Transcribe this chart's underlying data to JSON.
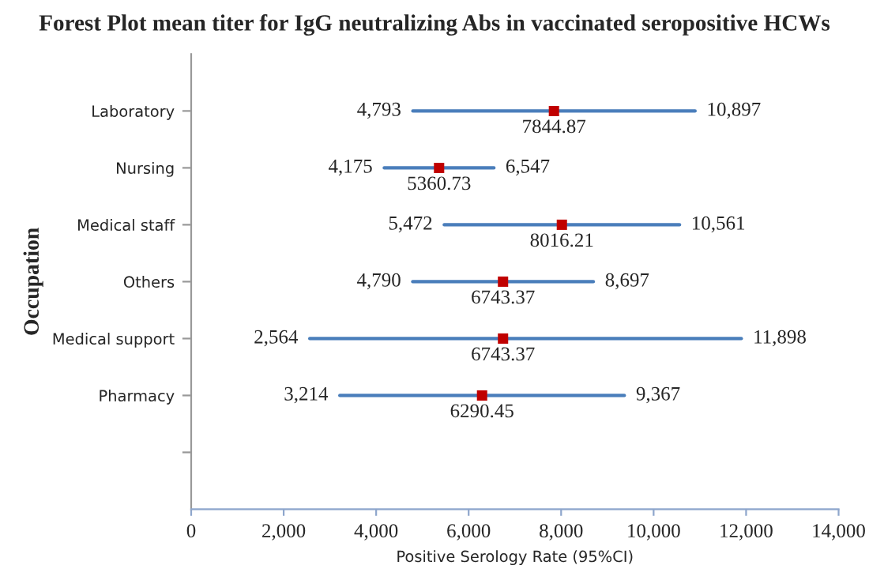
{
  "chart_data": {
    "type": "scatter",
    "orientation": "horizontal",
    "title": "Forest Plot mean titer for IgG neutralizing Abs in vaccinated seropositive HCWs",
    "xlabel": "Positive Serology Rate (95%CI)",
    "ylabel": "Occupation",
    "categories": [
      "Laboratory",
      "Nursing",
      "Medical staff",
      "Others",
      "Medical support",
      "Pharmacy",
      null
    ],
    "series": [
      {
        "color": "#c00000",
        "values": [
          7844.87,
          5360.73,
          8016.21,
          6743.37,
          6743.37,
          6290.45,
          null
        ],
        "errors": [
          [
            4793,
            10897
          ],
          [
            4175,
            6547
          ],
          [
            5472,
            10561
          ],
          [
            4790,
            8697
          ],
          [
            2564,
            11898
          ],
          [
            3214,
            9367
          ],
          null
        ],
        "value_labels": [
          "7844.87",
          "5360.73",
          "8016.21",
          "6743.37",
          "6743.37",
          "6290.45",
          null
        ]
      }
    ],
    "annotations": [
      "4,793",
      "10,897",
      "4,175",
      "6,547",
      "5,472",
      "10,561",
      "4,790",
      "8,697",
      "2,564",
      "11,898",
      "3,214",
      "9,367"
    ],
    "xlim": [
      0,
      14000
    ],
    "xticks": [
      {
        "value": 0,
        "label": "0"
      },
      {
        "value": 2000,
        "label": "2,000"
      },
      {
        "value": 4000,
        "label": "4,000"
      },
      {
        "value": 6000,
        "label": "6,000"
      },
      {
        "value": 8000,
        "label": "8,000"
      },
      {
        "value": 10000,
        "label": "10,000"
      },
      {
        "value": 12000,
        "label": "12,000"
      },
      {
        "value": 14000,
        "label": "14,000"
      }
    ],
    "marker": "square",
    "grid": false,
    "legend": false
  }
}
